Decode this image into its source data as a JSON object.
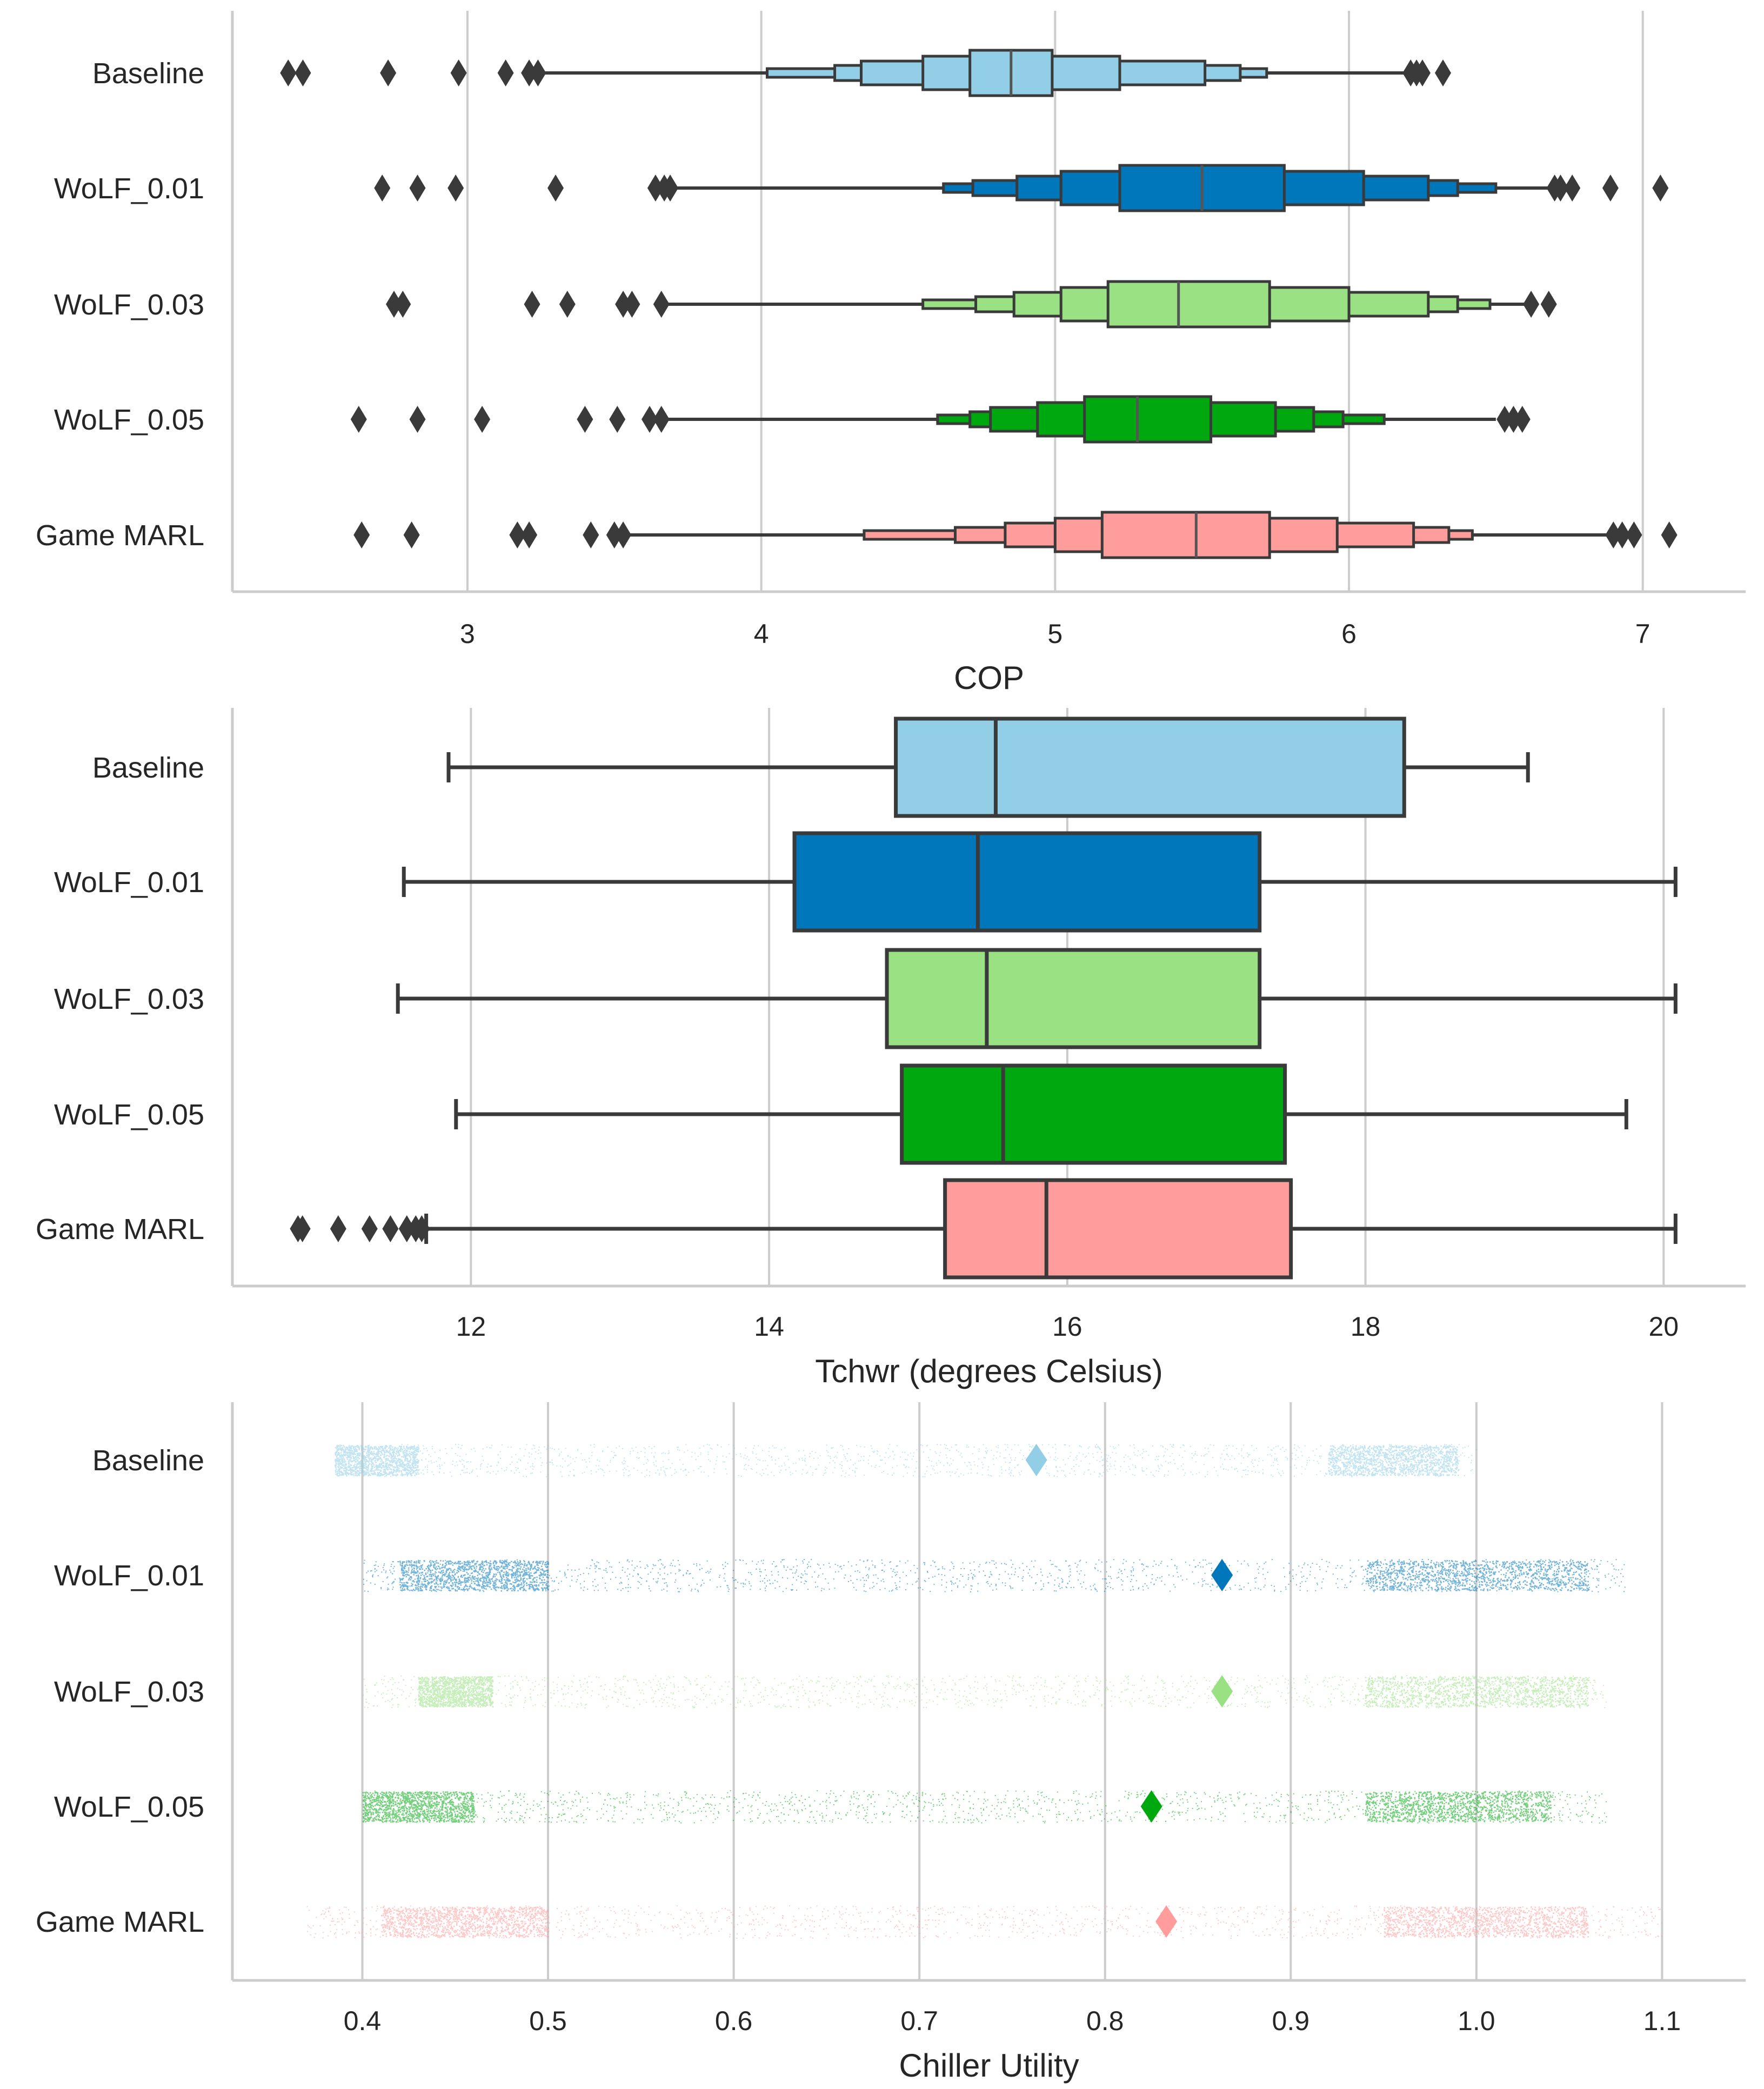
{
  "chart_data": [
    {
      "type": "boxen",
      "xlabel": "COP",
      "xlim": [
        2.2,
        7.35
      ],
      "xticks": [
        3,
        4,
        5,
        6,
        7
      ],
      "categories": [
        "Baseline",
        "WoLF_0.01",
        "WoLF_0.03",
        "WoLF_0.05",
        "Game MARL"
      ],
      "colors": [
        "#92CFE6",
        "#0077BB",
        "#99E183",
        "#00A810",
        "#FF9C9C"
      ],
      "series": [
        {
          "name": "Baseline",
          "median": 4.85,
          "levels": [
            [
              4.71,
              4.99
            ],
            [
              4.55,
              5.22
            ],
            [
              4.34,
              5.51
            ],
            [
              4.25,
              5.63
            ],
            [
              4.02,
              5.72
            ]
          ],
          "whisker": [
            3.25,
            6.2
          ],
          "outliers": [
            2.39,
            2.44,
            2.73,
            2.97,
            3.13,
            3.21,
            3.24,
            6.21,
            6.23,
            6.25,
            6.32
          ]
        },
        {
          "name": "WoLF_0.01",
          "median": 5.5,
          "levels": [
            [
              5.22,
              5.78
            ],
            [
              5.02,
              6.05
            ],
            [
              4.87,
              6.27
            ],
            [
              4.72,
              6.37
            ],
            [
              4.62,
              6.5
            ]
          ],
          "whisker": [
            3.68,
            6.7
          ],
          "outliers": [
            2.71,
            2.83,
            2.96,
            3.3,
            3.64,
            3.67,
            3.69,
            6.7,
            6.72,
            6.76,
            6.89,
            7.06
          ]
        },
        {
          "name": "WoLF_0.03",
          "median": 5.42,
          "levels": [
            [
              5.18,
              5.73
            ],
            [
              5.02,
              6.0
            ],
            [
              4.86,
              6.27
            ],
            [
              4.73,
              6.37
            ],
            [
              4.55,
              6.48
            ]
          ],
          "whisker": [
            3.66,
            6.62
          ],
          "outliers": [
            2.75,
            2.78,
            3.22,
            3.34,
            3.53,
            3.56,
            3.66,
            6.62,
            6.68
          ]
        },
        {
          "name": "WoLF_0.05",
          "median": 5.28,
          "levels": [
            [
              5.1,
              5.53
            ],
            [
              4.94,
              5.75
            ],
            [
              4.78,
              5.88
            ],
            [
              4.71,
              5.98
            ],
            [
              4.6,
              6.12
            ]
          ],
          "whisker": [
            3.66,
            6.5
          ],
          "outliers": [
            2.63,
            2.83,
            3.05,
            3.4,
            3.51,
            3.62,
            3.66,
            6.53,
            6.56,
            6.59
          ]
        },
        {
          "name": "Game MARL",
          "median": 5.48,
          "levels": [
            [
              5.16,
              5.73
            ],
            [
              5.0,
              5.96
            ],
            [
              4.83,
              6.22
            ],
            [
              4.66,
              6.34
            ],
            [
              4.35,
              6.42
            ]
          ],
          "whisker": [
            3.54,
            6.9
          ],
          "outliers": [
            2.64,
            2.81,
            3.17,
            3.21,
            3.42,
            3.5,
            3.53,
            6.9,
            6.93,
            6.97,
            7.09
          ]
        }
      ]
    },
    {
      "type": "box",
      "xlabel": "Tchwr (degrees Celsius)",
      "xlim": [
        10.4,
        20.55
      ],
      "xticks": [
        12,
        14,
        16,
        18,
        20
      ],
      "categories": [
        "Baseline",
        "WoLF_0.01",
        "WoLF_0.03",
        "WoLF_0.05",
        "Game MARL"
      ],
      "colors": [
        "#92CFE6",
        "#0077BB",
        "#99E183",
        "#00A810",
        "#FF9C9C"
      ],
      "series": [
        {
          "name": "Baseline",
          "min": 11.85,
          "q1": 14.85,
          "median": 15.52,
          "q3": 18.26,
          "max": 19.09,
          "outliers": []
        },
        {
          "name": "WoLF_0.01",
          "min": 11.55,
          "q1": 14.17,
          "median": 15.4,
          "q3": 17.29,
          "max": 20.08,
          "outliers": []
        },
        {
          "name": "WoLF_0.03",
          "min": 11.51,
          "q1": 14.79,
          "median": 15.46,
          "q3": 17.29,
          "max": 20.08,
          "outliers": []
        },
        {
          "name": "WoLF_0.05",
          "min": 11.9,
          "q1": 14.89,
          "median": 15.57,
          "q3": 17.46,
          "max": 19.75,
          "outliers": []
        },
        {
          "name": "Game MARL",
          "min": 11.7,
          "q1": 15.18,
          "median": 15.86,
          "q3": 17.5,
          "max": 20.08,
          "outliers": [
            10.84,
            10.87,
            11.11,
            11.32,
            11.46,
            11.57,
            11.63,
            11.67
          ]
        }
      ]
    },
    {
      "type": "strip",
      "xlabel": "Chiller Utility",
      "xlim": [
        0.33,
        1.145
      ],
      "xticks": [
        0.4,
        0.5,
        0.6,
        0.7,
        0.8,
        0.9,
        1.0,
        1.1
      ],
      "categories": [
        "Baseline",
        "WoLF_0.01",
        "WoLF_0.03",
        "WoLF_0.05",
        "Game MARL"
      ],
      "colors": [
        "#92CFE6",
        "#0077BB",
        "#99E183",
        "#00A810",
        "#FF9C9C"
      ],
      "series": [
        {
          "name": "Baseline",
          "mean": 0.763,
          "range": [
            0.385,
            1.0
          ],
          "dense": [
            [
              0.385,
              0.43
            ],
            [
              0.92,
              0.99
            ]
          ]
        },
        {
          "name": "WoLF_0.01",
          "mean": 0.863,
          "range": [
            0.4,
            1.08
          ],
          "dense": [
            [
              0.42,
              0.5
            ],
            [
              0.94,
              1.06
            ]
          ]
        },
        {
          "name": "WoLF_0.03",
          "mean": 0.863,
          "range": [
            0.4,
            1.07
          ],
          "dense": [
            [
              0.43,
              0.47
            ],
            [
              0.94,
              1.06
            ]
          ]
        },
        {
          "name": "WoLF_0.05",
          "mean": 0.825,
          "range": [
            0.4,
            1.07
          ],
          "dense": [
            [
              0.4,
              0.46
            ],
            [
              0.94,
              1.04
            ]
          ]
        },
        {
          "name": "Game MARL",
          "mean": 0.833,
          "range": [
            0.37,
            1.1
          ],
          "dense": [
            [
              0.41,
              0.5
            ],
            [
              0.95,
              1.06
            ]
          ]
        }
      ]
    }
  ]
}
